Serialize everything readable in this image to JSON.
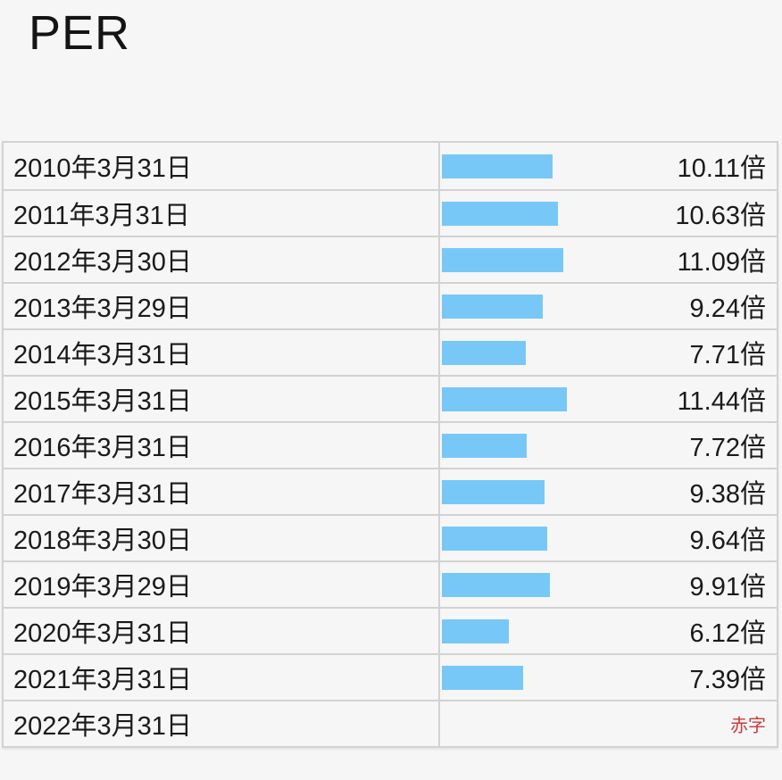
{
  "title": "PER",
  "colors": {
    "background": "#f6f6f6",
    "border": "#d2d2d2",
    "text": "#1a1a1a",
    "bar": "#77c8f7",
    "deficit": "#cb3a3c"
  },
  "table": {
    "rows": [
      {
        "date": "2010年3月31日",
        "value": 10.11,
        "value_label": "10.11倍",
        "deficit": false
      },
      {
        "date": "2011年3月31日",
        "value": 10.63,
        "value_label": "10.63倍",
        "deficit": false
      },
      {
        "date": "2012年3月30日",
        "value": 11.09,
        "value_label": "11.09倍",
        "deficit": false
      },
      {
        "date": "2013年3月29日",
        "value": 9.24,
        "value_label": "9.24倍",
        "deficit": false
      },
      {
        "date": "2014年3月31日",
        "value": 7.71,
        "value_label": "7.71倍",
        "deficit": false
      },
      {
        "date": "2015年3月31日",
        "value": 11.44,
        "value_label": "11.44倍",
        "deficit": false
      },
      {
        "date": "2016年3月31日",
        "value": 7.72,
        "value_label": "7.72倍",
        "deficit": false
      },
      {
        "date": "2017年3月31日",
        "value": 9.38,
        "value_label": "9.38倍",
        "deficit": false
      },
      {
        "date": "2018年3月30日",
        "value": 9.64,
        "value_label": "9.64倍",
        "deficit": false
      },
      {
        "date": "2019年3月29日",
        "value": 9.91,
        "value_label": "9.91倍",
        "deficit": false
      },
      {
        "date": "2020年3月31日",
        "value": 6.12,
        "value_label": "6.12倍",
        "deficit": false
      },
      {
        "date": "2021年3月31日",
        "value": 7.39,
        "value_label": "7.39倍",
        "deficit": false
      },
      {
        "date": "2022年3月31日",
        "value": null,
        "value_label": "赤字",
        "deficit": true
      }
    ]
  },
  "chart_data": {
    "type": "bar",
    "orientation": "horizontal",
    "title": "PER",
    "categories": [
      "2010年3月31日",
      "2011年3月31日",
      "2012年3月30日",
      "2013年3月29日",
      "2014年3月31日",
      "2015年3月31日",
      "2016年3月31日",
      "2017年3月31日",
      "2018年3月30日",
      "2019年3月29日",
      "2020年3月31日",
      "2021年3月31日",
      "2022年3月31日"
    ],
    "values": [
      10.11,
      10.63,
      11.09,
      9.24,
      7.71,
      11.44,
      7.72,
      9.38,
      9.64,
      9.91,
      6.12,
      7.39,
      null
    ],
    "value_labels": [
      "10.11倍",
      "10.63倍",
      "11.09倍",
      "9.24倍",
      "7.71倍",
      "11.44倍",
      "7.72倍",
      "9.38倍",
      "9.64倍",
      "9.91倍",
      "6.12倍",
      "7.39倍",
      "赤字"
    ],
    "unit": "倍",
    "bar_color": "#77c8f7",
    "annotations": [
      "2022年3月31日 row shows 赤字 (deficit/loss) in red instead of a bar"
    ],
    "legend": false,
    "grid": false,
    "xlabel": "",
    "ylabel": ""
  }
}
